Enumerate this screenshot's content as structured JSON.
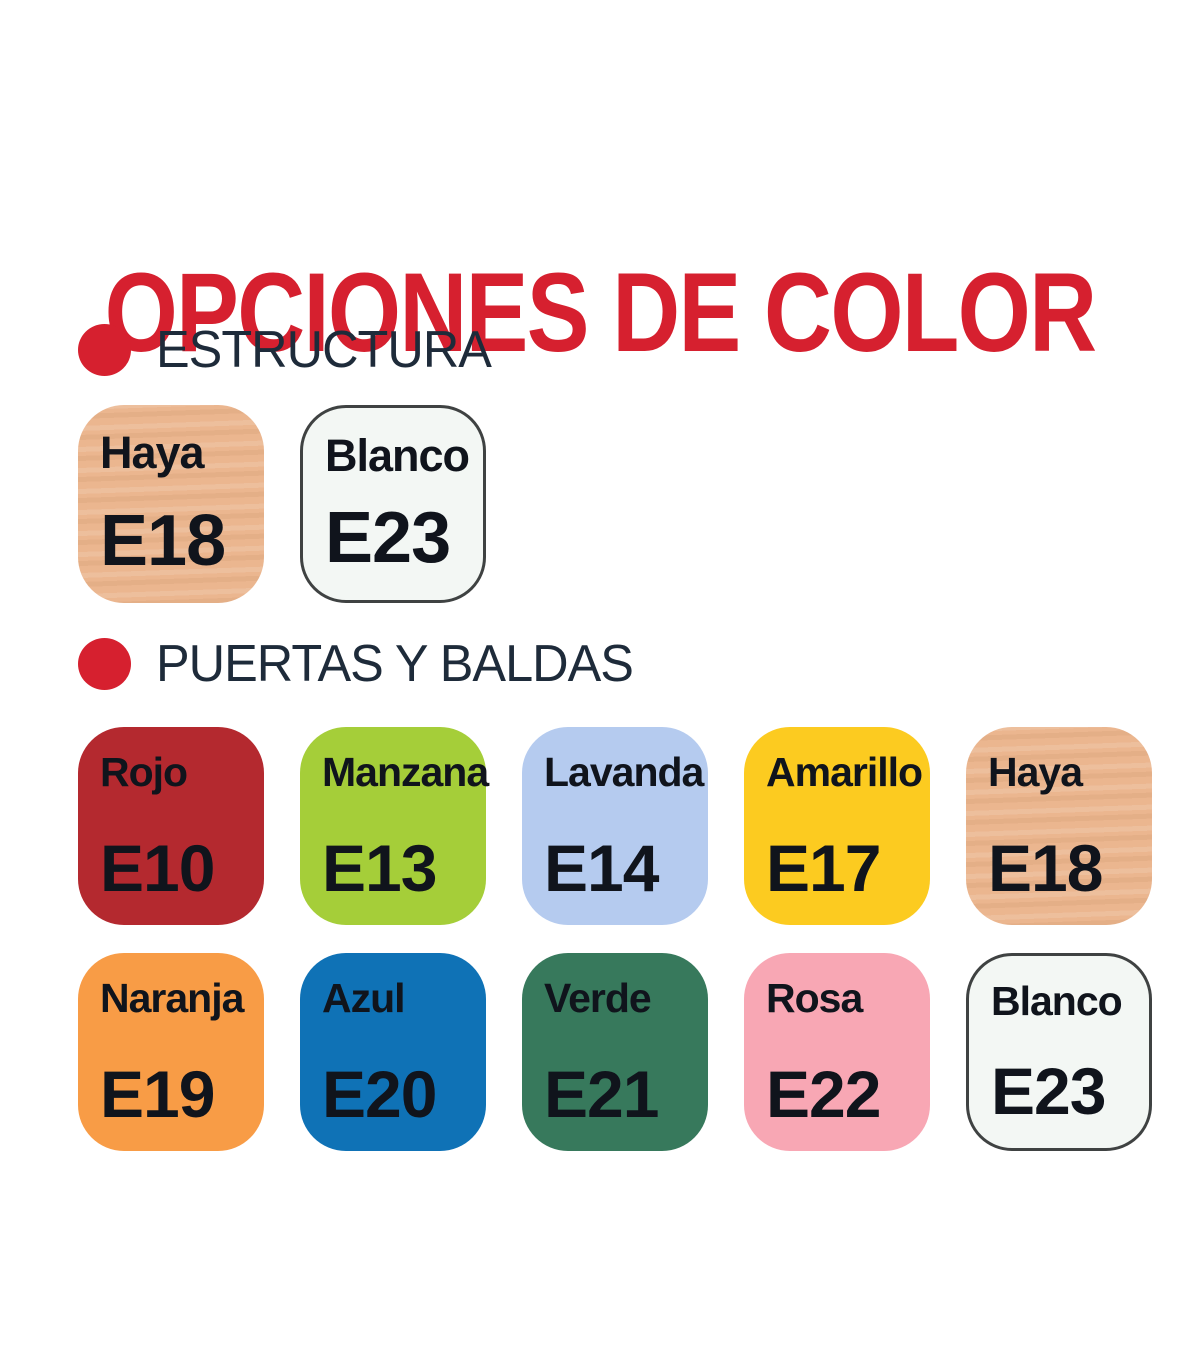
{
  "page": {
    "title": "OPCIONES DE COLOR",
    "title_color": "#d6202f",
    "background": "#ffffff",
    "bullet_color": "#d6202f",
    "header_text_color": "#1e2b3a"
  },
  "sections": [
    {
      "id": "estructura",
      "label": "ESTRUCTURA",
      "swatches": [
        {
          "name": "Haya",
          "code": "E18",
          "color": "#ebb68f",
          "wood_texture": true,
          "bordered": false
        },
        {
          "name": "Blanco",
          "code": "E23",
          "color": "#f3f7f4",
          "wood_texture": false,
          "bordered": true
        }
      ]
    },
    {
      "id": "puertas-y-baldas",
      "label": "PUERTAS Y BALDAS",
      "swatches": [
        {
          "name": "Rojo",
          "code": "E10",
          "color": "#b4292f",
          "wood_texture": false,
          "bordered": false
        },
        {
          "name": "Manzana",
          "code": "E13",
          "color": "#a5ce39",
          "wood_texture": false,
          "bordered": false
        },
        {
          "name": "Lavanda",
          "code": "E14",
          "color": "#b5cbef",
          "wood_texture": false,
          "bordered": false
        },
        {
          "name": "Amarillo",
          "code": "E17",
          "color": "#fccb20",
          "wood_texture": false,
          "bordered": false
        },
        {
          "name": "Haya",
          "code": "E18",
          "color": "#ebb68f",
          "wood_texture": true,
          "bordered": false
        },
        {
          "name": "Naranja",
          "code": "E19",
          "color": "#f89c46",
          "wood_texture": false,
          "bordered": false
        },
        {
          "name": "Azul",
          "code": "E20",
          "color": "#0f72b6",
          "wood_texture": false,
          "bordered": false
        },
        {
          "name": "Verde",
          "code": "E21",
          "color": "#37795c",
          "wood_texture": false,
          "bordered": false
        },
        {
          "name": "Rosa",
          "code": "E22",
          "color": "#f8a7b4",
          "wood_texture": false,
          "bordered": false
        },
        {
          "name": "Blanco",
          "code": "E23",
          "color": "#f3f7f4",
          "wood_texture": false,
          "bordered": true
        }
      ]
    }
  ]
}
